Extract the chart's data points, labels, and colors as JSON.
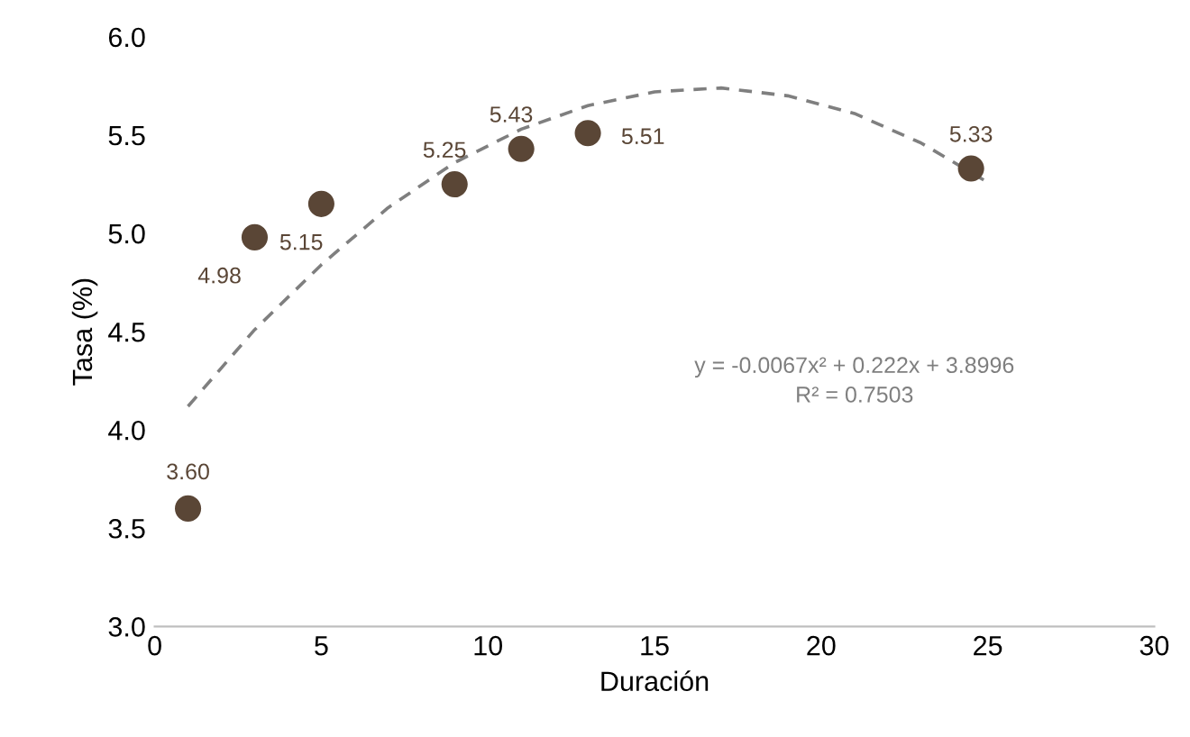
{
  "chart_data": {
    "type": "scatter",
    "xlabel": "Duración",
    "ylabel": "Tasa (%)",
    "xlim": [
      0,
      30
    ],
    "xticks": [
      0,
      5,
      10,
      15,
      20,
      25,
      30
    ],
    "ylim": [
      3.0,
      6.0
    ],
    "yticks": [
      {
        "value": 3.0,
        "label": "3.0"
      },
      {
        "value": 3.5,
        "label": "3.5"
      },
      {
        "value": 4.0,
        "label": "4.0"
      },
      {
        "value": 4.5,
        "label": "4.5"
      },
      {
        "value": 5.0,
        "label": "5.0"
      },
      {
        "value": 5.5,
        "label": "5.5"
      },
      {
        "value": 6.0,
        "label": "6.0"
      }
    ],
    "grid": false,
    "legend": false,
    "series": [
      {
        "color": "#5a4636",
        "marker": "circle",
        "x": [
          1,
          3,
          5,
          9,
          11,
          13,
          24.5
        ],
        "values": [
          3.6,
          4.98,
          5.15,
          5.25,
          5.43,
          5.51,
          5.33
        ],
        "value_labels": [
          "3.60",
          "4.98",
          "5.15",
          "5.25",
          "5.43",
          "5.51",
          "5.33"
        ]
      },
      {
        "type": "line",
        "color": "#7f7f7f",
        "line_style": "dashed",
        "marker": "none",
        "x": [
          1,
          3,
          5,
          7,
          9,
          11,
          13,
          15,
          17,
          19,
          21,
          23,
          25
        ],
        "values": [
          4.12,
          4.51,
          4.84,
          5.13,
          5.36,
          5.53,
          5.65,
          5.72,
          5.74,
          5.7,
          5.61,
          5.46,
          5.26
        ]
      }
    ],
    "annotations": [
      "y = -0.0067x² + 0.222x + 3.8996",
      "R² = 0.7503"
    ]
  }
}
